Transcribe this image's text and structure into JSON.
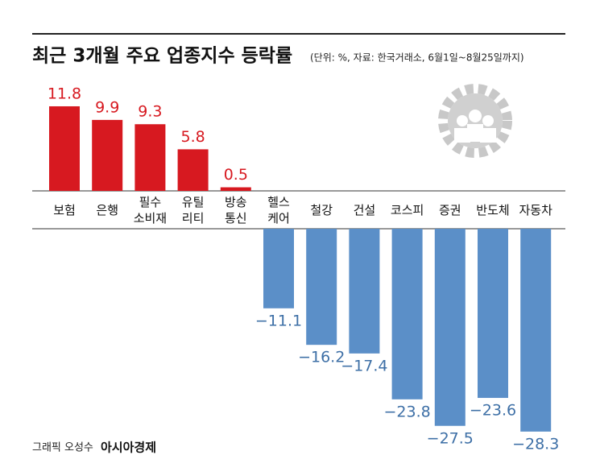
{
  "chart_data": {
    "type": "bar",
    "title": "최근 3개월 주요 업종지수 등락률",
    "subtitle": "(단위: %, 자료: 한국거래소, 6월1일~8월25일까지)",
    "categories": [
      "보험",
      "은행",
      "필수\n소비재",
      "유틸\n리티",
      "방송\n통신",
      "헬스\n케어",
      "철강",
      "건설",
      "코스피",
      "증권",
      "반도체",
      "자동차"
    ],
    "values": [
      11.8,
      9.9,
      9.3,
      5.8,
      0.5,
      -11.1,
      -16.2,
      -17.4,
      -23.8,
      -27.5,
      -23.6,
      -28.3
    ],
    "value_labels": [
      "11.8",
      "9.9",
      "9.3",
      "5.8",
      "0.5",
      "−11.1",
      "−16.2",
      "−17.4",
      "−23.8",
      "−27.5",
      "−23.6",
      "−28.3"
    ],
    "positive_color": "#d71920",
    "negative_color": "#5b8fc8",
    "credit": "그래픽 오성수",
    "source": "아시아경제"
  }
}
